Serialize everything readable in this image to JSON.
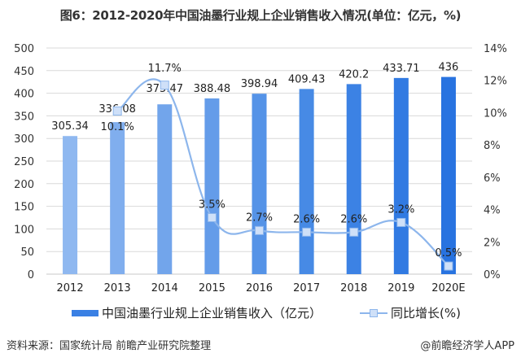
{
  "title": "图6：2012-2020年中国油墨行业规上企业销售收入情况(单位：亿元，%)",
  "chart_data": {
    "type": "bar+line",
    "categories": [
      "2012",
      "2013",
      "2014",
      "2015",
      "2016",
      "2017",
      "2018",
      "2019",
      "2020E"
    ],
    "series": [
      {
        "name": "中国油墨行业规上企业销售收入（亿元）",
        "type": "bar",
        "axis": "left",
        "values": [
          305.34,
          336.08,
          375.47,
          388.48,
          398.94,
          409.43,
          420.2,
          433.71,
          436
        ],
        "labels": [
          "305.34",
          "336.08",
          "375.47",
          "388.48",
          "398.94",
          "409.43",
          "420.2",
          "433.71",
          "436"
        ],
        "colors": [
          "#8fb8f0",
          "#80aeee",
          "#72a5eb",
          "#649ce9",
          "#5593e7",
          "#478ae5",
          "#3c82e4",
          "#317ae2",
          "#2873e0"
        ]
      },
      {
        "name": "同比增长(%)",
        "type": "line",
        "axis": "right",
        "values": [
          null,
          10.1,
          11.7,
          3.5,
          2.7,
          2.6,
          2.6,
          3.2,
          0.5
        ],
        "labels": [
          "",
          "10.1%",
          "11.7%",
          "3.5%",
          "2.7%",
          "2.6%",
          "2.6%",
          "3.2%",
          "0.5%"
        ],
        "color": "#8db6ec",
        "marker_fill": "#cfe0f8"
      }
    ],
    "y_left": {
      "min": 0,
      "max": 500,
      "step": 50,
      "ticks": [
        "0",
        "50",
        "100",
        "150",
        "200",
        "250",
        "300",
        "350",
        "400",
        "450",
        "500"
      ]
    },
    "y_right": {
      "min": 0,
      "max": 14,
      "step": 2,
      "ticks": [
        "0%",
        "2%",
        "4%",
        "6%",
        "8%",
        "10%",
        "12%",
        "14%"
      ]
    },
    "grid": true,
    "legend_position": "bottom"
  },
  "legend": {
    "bar_label": "中国油墨行业规上企业销售收入（亿元）",
    "line_label": "同比增长(%)"
  },
  "footer": {
    "source": "资料来源：国家统计局 前瞻产业研究院整理",
    "brand": "@前瞻经济学人APP"
  }
}
